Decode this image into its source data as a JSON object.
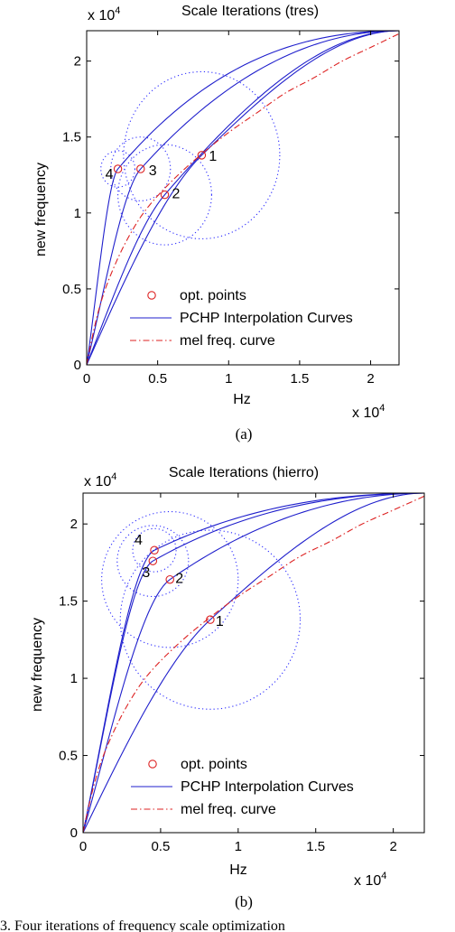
{
  "colors": {
    "blue": "#1f1fcc",
    "red": "#dd2222",
    "dotted": "#2c2cff"
  },
  "chart_data": [
    {
      "type": "line",
      "title": "Scale Iterations (tres)",
      "xlabel": "Hz",
      "ylabel": "new frequency",
      "x_multiplier": "x 10",
      "x_multiplier_exp": "4",
      "y_multiplier": "x 10",
      "y_multiplier_exp": "4",
      "xlim": [
        0,
        2.2
      ],
      "ylim": [
        0,
        2.2
      ],
      "xtick_values": [
        0,
        0.5,
        1,
        1.5,
        2
      ],
      "xtick_labels": [
        "0",
        "0.5",
        "1",
        "1.5",
        "2"
      ],
      "ytick_values": [
        0,
        0.5,
        1,
        1.5,
        2
      ],
      "ytick_labels": [
        "0",
        "0.5",
        "1",
        "1.5",
        "2"
      ],
      "caption": "(a)",
      "legend": {
        "position": "lower-center",
        "entries": [
          {
            "label": "opt. points",
            "style": "marker"
          },
          {
            "label": "PCHP Interpolation Curves",
            "style": "solid"
          },
          {
            "label": "mel freq. curve",
            "style": "dashdot"
          }
        ]
      },
      "opt_points": [
        {
          "label": "1",
          "x": 0.81,
          "y": 1.38
        },
        {
          "label": "2",
          "x": 0.55,
          "y": 1.12
        },
        {
          "label": "3",
          "x": 0.38,
          "y": 1.29
        },
        {
          "label": "4",
          "x": 0.22,
          "y": 1.29
        }
      ],
      "search_circles": [
        {
          "cx": 0.81,
          "cy": 1.38,
          "r": 0.55
        },
        {
          "cx": 0.55,
          "cy": 1.12,
          "r": 0.33
        },
        {
          "cx": 0.38,
          "cy": 1.29,
          "r": 0.21
        },
        {
          "cx": 0.22,
          "cy": 1.29,
          "r": 0.12
        }
      ],
      "mel_curve": {
        "x": [
          0,
          0.1,
          0.2,
          0.3,
          0.4,
          0.6,
          0.8,
          1.0,
          1.2,
          1.4,
          1.6,
          1.8,
          2.0,
          2.2
        ],
        "y": [
          0,
          0.41,
          0.66,
          0.85,
          1.0,
          1.21,
          1.38,
          1.53,
          1.66,
          1.79,
          1.89,
          2.0,
          2.09,
          2.18
        ]
      },
      "series": [
        {
          "points": [
            [
              0,
              0
            ],
            [
              0.81,
              1.38
            ],
            [
              2.2,
              2.2
            ]
          ]
        },
        {
          "points": [
            [
              0,
              0
            ],
            [
              0.55,
              1.12
            ],
            [
              2.2,
              2.2
            ]
          ]
        },
        {
          "points": [
            [
              0,
              0
            ],
            [
              0.38,
              1.29
            ],
            [
              2.2,
              2.2
            ]
          ]
        },
        {
          "points": [
            [
              0,
              0
            ],
            [
              0.22,
              1.29
            ],
            [
              2.2,
              2.2
            ]
          ]
        }
      ]
    },
    {
      "type": "line",
      "title": "Scale Iterations (hierro)",
      "xlabel": "Hz",
      "ylabel": "new frequency",
      "x_multiplier": "x 10",
      "x_multiplier_exp": "4",
      "y_multiplier": "x 10",
      "y_multiplier_exp": "4",
      "xlim": [
        0,
        2.2
      ],
      "ylim": [
        0,
        2.2
      ],
      "xtick_values": [
        0,
        0.5,
        1,
        1.5,
        2
      ],
      "xtick_labels": [
        "0",
        "0.5",
        "1",
        "1.5",
        "2"
      ],
      "ytick_values": [
        0,
        0.5,
        1,
        1.5,
        2
      ],
      "ytick_labels": [
        "0",
        "0.5",
        "1",
        "1.5",
        "2"
      ],
      "caption": "(b)",
      "legend": {
        "position": "lower-center",
        "entries": [
          {
            "label": "opt. points",
            "style": "marker"
          },
          {
            "label": "PCHP Interpolation Curves",
            "style": "solid"
          },
          {
            "label": "mel freq. curve",
            "style": "dashdot"
          }
        ]
      },
      "opt_points": [
        {
          "label": "1",
          "x": 0.82,
          "y": 1.38
        },
        {
          "label": "2",
          "x": 0.56,
          "y": 1.64
        },
        {
          "label": "3",
          "x": 0.45,
          "y": 1.76
        },
        {
          "label": "4",
          "x": 0.46,
          "y": 1.83
        }
      ],
      "search_circles": [
        {
          "cx": 0.82,
          "cy": 1.38,
          "r": 0.58
        },
        {
          "cx": 0.56,
          "cy": 1.64,
          "r": 0.44
        },
        {
          "cx": 0.45,
          "cy": 1.76,
          "r": 0.23
        },
        {
          "cx": 0.46,
          "cy": 1.83,
          "r": 0.14
        }
      ],
      "mel_curve": {
        "x": [
          0,
          0.1,
          0.2,
          0.3,
          0.4,
          0.6,
          0.8,
          1.0,
          1.2,
          1.4,
          1.6,
          1.8,
          2.0,
          2.2
        ],
        "y": [
          0,
          0.41,
          0.66,
          0.85,
          1.0,
          1.21,
          1.38,
          1.53,
          1.66,
          1.79,
          1.89,
          2.0,
          2.09,
          2.18
        ]
      },
      "series": [
        {
          "points": [
            [
              0,
              0
            ],
            [
              0.82,
              1.38
            ],
            [
              2.2,
              2.2
            ]
          ]
        },
        {
          "points": [
            [
              0,
              0
            ],
            [
              0.56,
              1.64
            ],
            [
              2.2,
              2.2
            ]
          ]
        },
        {
          "points": [
            [
              0,
              0
            ],
            [
              0.45,
              1.76
            ],
            [
              2.2,
              2.2
            ]
          ]
        },
        {
          "points": [
            [
              0,
              0
            ],
            [
              0.46,
              1.83
            ],
            [
              2.2,
              2.2
            ]
          ]
        }
      ]
    }
  ],
  "footer_text": "3.   Four iterations of frequency scale optimization"
}
